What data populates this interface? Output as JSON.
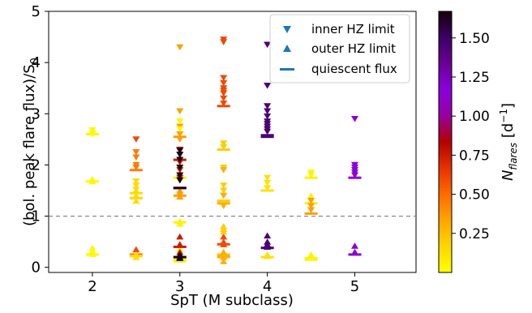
{
  "chart_data": {
    "type": "scatter",
    "xlabel": "SpT (M subclass)",
    "ylabel": "(bol. peak flare flux)/S",
    "ylabel_subscript": "0",
    "x_ticks": [
      "2",
      "3",
      "4",
      "5"
    ],
    "y_ticks": [
      "0",
      "1",
      "2",
      "3",
      "4",
      "5"
    ],
    "xlim": [
      1.5,
      5.7
    ],
    "ylim": [
      -0.1,
      5.0
    ],
    "reference_line": {
      "y": 1.0,
      "style": "dashed",
      "color": "#808080"
    },
    "legend": {
      "placement": "top-right",
      "entries": [
        {
          "marker": "triangle-down",
          "label": "inner HZ limit",
          "color": "#1f77b4"
        },
        {
          "marker": "triangle-up",
          "label": "outer HZ limit",
          "color": "#1f77b4"
        },
        {
          "marker": "hline",
          "label": "quiescent flux",
          "color": "#1f77b4"
        }
      ]
    },
    "colorbar": {
      "label_main": "N",
      "label_sub": "flares",
      "label_unit_open": " [d",
      "label_unit_sup": "−1",
      "label_unit_close": "]",
      "colormap": "gnuplot-reversed",
      "range": [
        0.0,
        1.67
      ],
      "ticks": [
        "0.25",
        "0.50",
        "0.75",
        "1.00",
        "1.25",
        "1.50"
      ],
      "stops": [
        "#ffff00",
        "#ffd700",
        "#ffa500",
        "#ff6a00",
        "#e63200",
        "#b40000",
        "#9600a0",
        "#8a00dc",
        "#6a0096",
        "#3c0064",
        "#14000a"
      ]
    },
    "series": [
      {
        "x": 2.0,
        "dn": [
          2.68,
          2.62,
          2.6
        ],
        "up": [
          1.72,
          1.68,
          0.38,
          0.32,
          0.26
        ],
        "q": [
          2.6,
          1.68,
          0.25
        ],
        "c": 0.02
      },
      {
        "x": 2.5,
        "dn": [
          2.5
        ],
        "up": [
          0.35
        ],
        "q": [],
        "c": 0.6
      },
      {
        "x": 2.5,
        "dn": [
          2.25,
          2.15,
          2.0,
          1.95
        ],
        "up": [],
        "q": [
          1.9,
          0.25
        ],
        "c": 0.45
      },
      {
        "x": 2.5,
        "dn": [
          1.68,
          1.6,
          1.52
        ],
        "up": [
          1.3,
          1.4,
          1.5,
          0.25,
          0.2
        ],
        "q": [
          1.45,
          1.35,
          0.22
        ],
        "c": 0.15
      },
      {
        "x": 3.0,
        "dn": [
          4.3,
          3.05,
          2.75,
          2.6,
          2.5
        ],
        "up": [
          1.5,
          1.45,
          1.38
        ],
        "q": [
          2.55,
          1.4
        ],
        "c": 0.35
      },
      {
        "x": 3.0,
        "dn": [
          2.85,
          2.7,
          2.2,
          2.1,
          1.95,
          1.75
        ],
        "up": [
          0.9,
          0.85,
          0.35,
          0.2,
          0.15
        ],
        "q": [
          1.75,
          0.88,
          0.15,
          0.12
        ],
        "c": 0.05
      },
      {
        "x": 3.0,
        "dn": [
          2.3,
          2.2,
          2.05,
          1.9,
          1.75
        ],
        "up": [
          0.6,
          0.45,
          0.3
        ],
        "q": [
          2.1,
          1.55,
          0.4
        ],
        "c": 0.75
      },
      {
        "x": 3.0,
        "dn": [
          2.28,
          2.2,
          2.1,
          1.95,
          1.8,
          1.7
        ],
        "up": [
          0.25,
          0.2,
          0.18
        ],
        "q": [
          1.55,
          0.2
        ],
        "c": 1.65
      },
      {
        "x": 3.5,
        "dn": [
          4.45,
          4.4,
          3.7,
          3.6,
          3.5,
          3.45,
          3.4,
          3.3,
          3.2
        ],
        "up": [
          0.6,
          0.5,
          0.45
        ],
        "q": [
          3.15,
          0.45
        ],
        "c": 0.6
      },
      {
        "x": 3.5,
        "dn": [
          2.42,
          2.35,
          1.95,
          1.6,
          1.5,
          1.4
        ],
        "up": [
          0.8,
          0.75,
          0.7
        ],
        "q": [
          2.3,
          1.3,
          0.25
        ],
        "c": 0.2
      },
      {
        "x": 3.5,
        "dn": [
          1.9,
          1.4,
          1.2
        ],
        "up": [
          0.3,
          0.2,
          0.12
        ],
        "q": [
          1.25,
          0.22,
          0.2
        ],
        "c": 0.3
      },
      {
        "x": 4.0,
        "dn": [
          4.35,
          3.55,
          3.15,
          3.05,
          2.95,
          2.85,
          2.8,
          2.75,
          2.7,
          2.65
        ],
        "up": [
          0.62,
          0.5,
          0.45,
          0.4
        ],
        "q": [
          2.58,
          2.55,
          0.38
        ],
        "c": 1.45
      },
      {
        "x": 4.0,
        "dn": [
          1.75,
          1.65,
          1.55
        ],
        "up": [
          0.25,
          0.22
        ],
        "q": [
          1.5,
          0.2
        ],
        "c": 0.12
      },
      {
        "x": 4.5,
        "dn": [
          1.85,
          1.8
        ],
        "up": [
          1.4
        ],
        "q": [
          1.75,
          1.25
        ],
        "c": 0.05
      },
      {
        "x": 4.5,
        "dn": [
          1.3,
          1.2,
          1.12
        ],
        "up": [],
        "q": [
          1.05
        ],
        "c": 0.35
      },
      {
        "x": 4.5,
        "dn": [],
        "up": [
          0.25,
          0.2
        ],
        "q": [
          0.18,
          0.15
        ],
        "c": 0.05
      },
      {
        "x": 5.0,
        "dn": [
          2.9,
          2.0,
          1.95,
          1.9,
          1.85,
          1.8
        ],
        "up": [
          0.42,
          0.3
        ],
        "q": [
          1.75,
          0.25
        ],
        "c": 1.15
      }
    ]
  }
}
